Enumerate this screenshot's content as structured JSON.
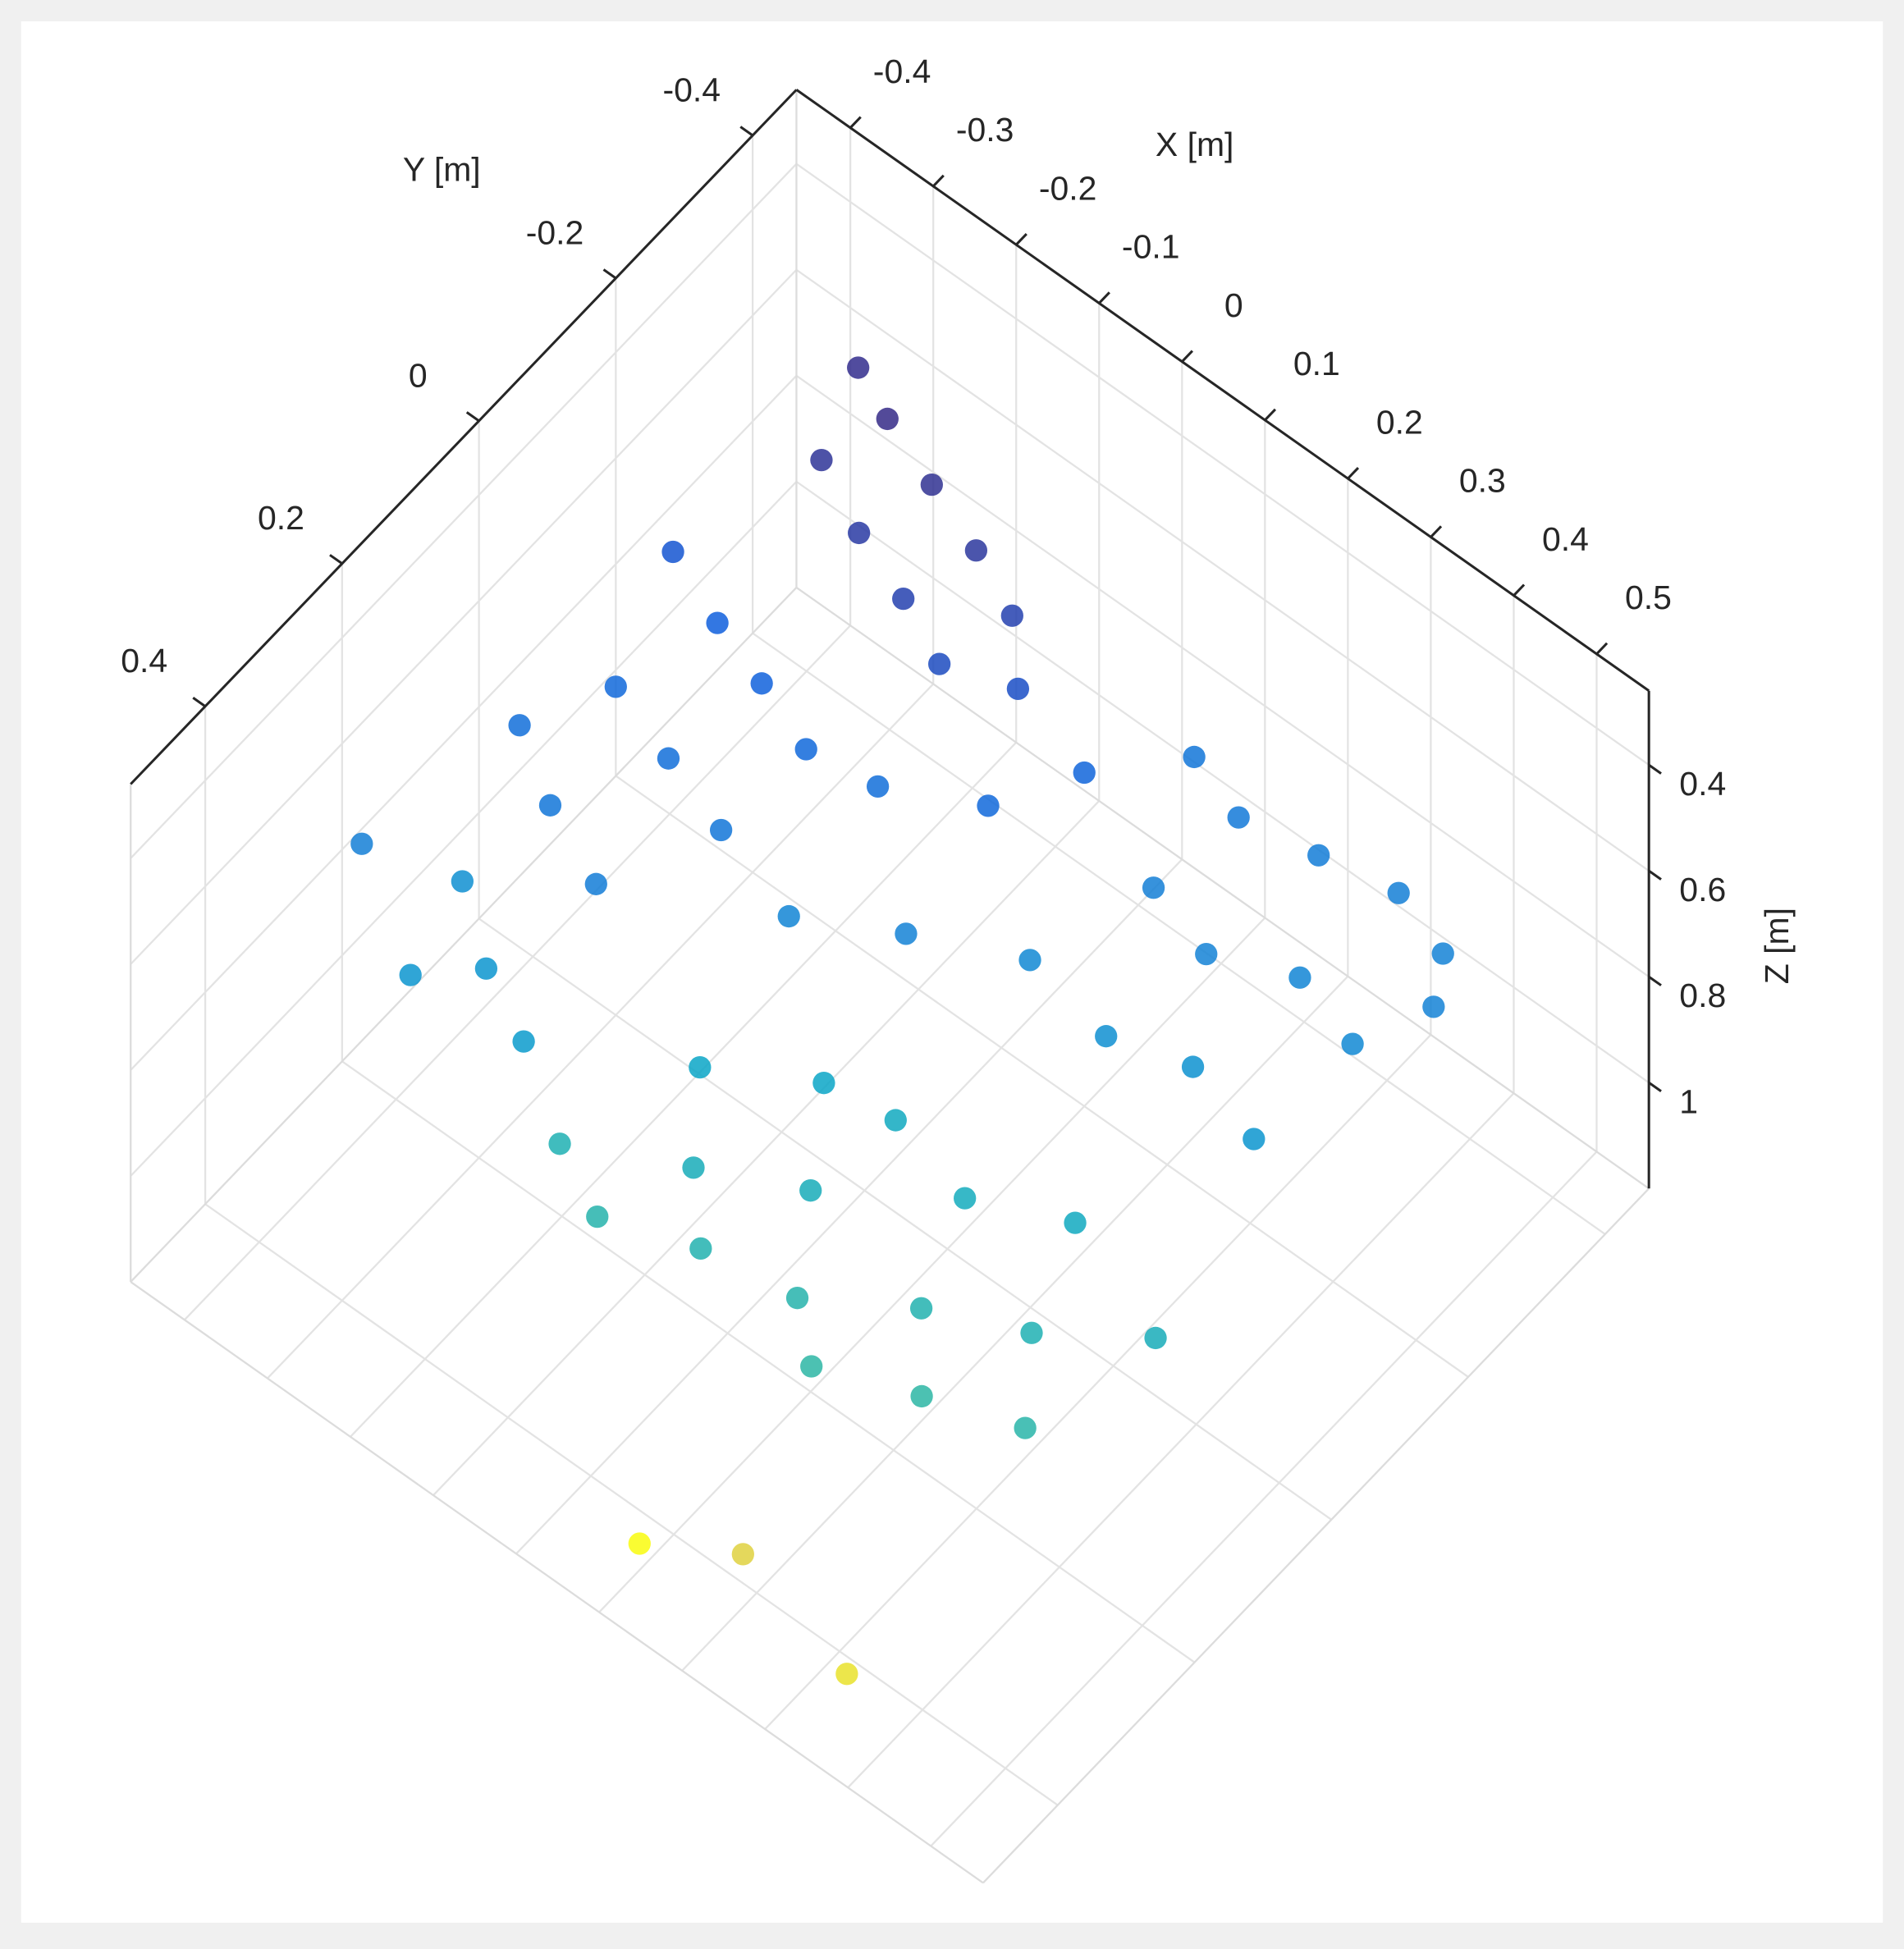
{
  "chart_data": {
    "type": "scatter3d",
    "xlabel": "X [m]",
    "ylabel": "Y [m]",
    "zlabel": "Z [m]",
    "xlim": [
      -0.465,
      0.563
    ],
    "ylim": [
      -0.464,
      0.509
    ],
    "zlim": [
      0.26,
      1.2
    ],
    "xticks": [
      -0.4,
      -0.3,
      -0.2,
      -0.1,
      0,
      0.1,
      0.2,
      0.3,
      0.4,
      0.5
    ],
    "yticks": [
      -0.4,
      -0.2,
      0,
      0.2,
      0.4
    ],
    "zticks": [
      0.4,
      0.6,
      0.8,
      1
    ],
    "zdir": "reverse",
    "grid": true,
    "colormap": "parula",
    "x": [
      -0.28,
      -0.22,
      -0.15,
      -0.08,
      -0.02,
      -0.25,
      -0.18,
      -0.11,
      -0.05,
      0.02,
      -0.33,
      -0.26,
      -0.19,
      -0.12,
      -0.05,
      0.05,
      0.1,
      -0.3,
      -0.22,
      -0.14,
      -0.35,
      -0.28,
      -0.2,
      0.15,
      0.22,
      0.3,
      0.38,
      0.45,
      0.2,
      0.28,
      0.36,
      0.44,
      0.15,
      0.25,
      0.33,
      0.42,
      0.48,
      0.05,
      -0.05,
      -0.32,
      -0.25,
      -0.18,
      -0.3,
      -0.4,
      -0.12,
      -0.05,
      0.0,
      0.05,
      0.1,
      0.15,
      0.2,
      0.25,
      0.3,
      0.35,
      0.4,
      0.12,
      0.22,
      0.32,
      0.05,
      -0.05,
      0.45,
      0.2,
      0.35,
      0.1
    ],
    "y": [
      -0.33,
      -0.3,
      -0.28,
      -0.26,
      -0.24,
      -0.24,
      -0.21,
      -0.19,
      -0.17,
      -0.2,
      -0.12,
      -0.1,
      -0.08,
      -0.06,
      -0.08,
      -0.12,
      -0.2,
      0.0,
      0.02,
      0.04,
      0.08,
      0.12,
      0.15,
      -0.3,
      -0.28,
      -0.3,
      -0.32,
      -0.3,
      -0.18,
      -0.16,
      -0.2,
      -0.18,
      -0.06,
      -0.05,
      -0.08,
      -0.06,
      -0.25,
      0.0,
      0.05,
      0.2,
      0.25,
      0.28,
      0.3,
      0.25,
      0.3,
      0.33,
      0.25,
      0.3,
      0.2,
      0.28,
      0.32,
      0.22,
      0.28,
      0.18,
      0.25,
      0.1,
      0.12,
      0.08,
      0.12,
      0.18,
      0.12,
      0.42,
      0.45,
      0.45
    ],
    "z": [
      0.4,
      0.39,
      0.41,
      0.43,
      0.46,
      0.42,
      0.44,
      0.46,
      0.49,
      0.5,
      0.52,
      0.55,
      0.56,
      0.58,
      0.6,
      0.58,
      0.57,
      0.58,
      0.6,
      0.62,
      0.6,
      0.62,
      0.64,
      0.62,
      0.63,
      0.64,
      0.65,
      0.66,
      0.65,
      0.66,
      0.67,
      0.68,
      0.68,
      0.7,
      0.71,
      0.72,
      0.66,
      0.66,
      0.67,
      0.7,
      0.72,
      0.74,
      0.72,
      0.65,
      0.84,
      0.86,
      0.82,
      0.85,
      0.82,
      0.86,
      0.88,
      0.85,
      0.88,
      0.84,
      0.87,
      0.8,
      0.81,
      0.8,
      0.78,
      0.78,
      0.82,
      1.1,
      1.12,
      1.15
    ]
  }
}
